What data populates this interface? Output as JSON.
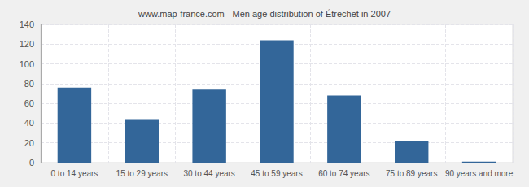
{
  "chart_data": {
    "type": "bar",
    "title": "www.map-france.com - Men age distribution of Étrechet in 2007",
    "categories": [
      "0 to 14 years",
      "15 to 29 years",
      "30 to 44 years",
      "45 to 59 years",
      "60 to 74 years",
      "75 to 89 years",
      "90 years and more"
    ],
    "values": [
      76,
      44,
      74,
      124,
      68,
      22,
      1
    ],
    "color": "#336699",
    "ylim": [
      0,
      140
    ],
    "yticks": [
      0,
      20,
      40,
      60,
      80,
      100,
      120,
      140
    ],
    "grid": true
  }
}
